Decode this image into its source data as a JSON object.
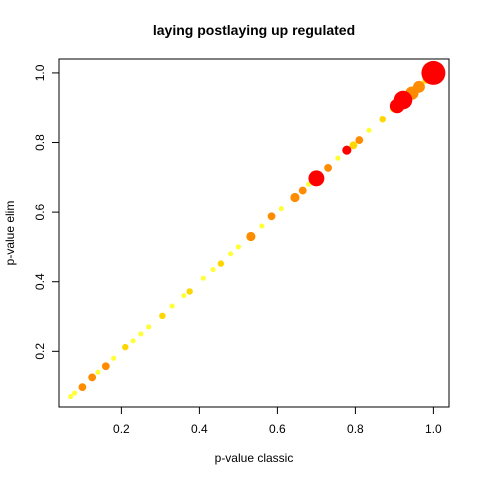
{
  "chart_data": {
    "type": "scatter",
    "title": "laying postlaying up regulated",
    "xlabel": "p-value classic",
    "ylabel": "p-value elim",
    "xlim": [
      0.04,
      1.04
    ],
    "ylim": [
      0.04,
      1.04
    ],
    "x_ticks": [
      0.2,
      0.4,
      0.6,
      0.8,
      1.0
    ],
    "x_tick_labels": [
      "0.2",
      "0.4",
      "0.6",
      "0.8",
      "1.0"
    ],
    "y_ticks": [
      0.2,
      0.4,
      0.6,
      0.8,
      1.0
    ],
    "y_tick_labels": [
      "0.2",
      "0.4",
      "0.6",
      "0.8",
      "1.0"
    ],
    "grid": false,
    "legend": "none",
    "colors": {
      "high": "#ff0000",
      "mid": "#ff8c00",
      "low": "#ffd700",
      "faint": "#ffff00"
    },
    "points": [
      {
        "x": 0.07,
        "y": 0.07,
        "size": 1,
        "color": "faint"
      },
      {
        "x": 0.08,
        "y": 0.08,
        "size": 1,
        "color": "faint"
      },
      {
        "x": 0.1,
        "y": 0.097,
        "size": 2,
        "color": "mid"
      },
      {
        "x": 0.125,
        "y": 0.125,
        "size": 2,
        "color": "mid"
      },
      {
        "x": 0.16,
        "y": 0.157,
        "size": 2,
        "color": "mid"
      },
      {
        "x": 0.14,
        "y": 0.14,
        "size": 1,
        "color": "faint"
      },
      {
        "x": 0.18,
        "y": 0.18,
        "size": 1,
        "color": "faint"
      },
      {
        "x": 0.21,
        "y": 0.212,
        "size": 1.5,
        "color": "low"
      },
      {
        "x": 0.23,
        "y": 0.23,
        "size": 1,
        "color": "faint"
      },
      {
        "x": 0.25,
        "y": 0.25,
        "size": 1,
        "color": "faint"
      },
      {
        "x": 0.27,
        "y": 0.27,
        "size": 1,
        "color": "faint"
      },
      {
        "x": 0.305,
        "y": 0.302,
        "size": 1.5,
        "color": "low"
      },
      {
        "x": 0.33,
        "y": 0.33,
        "size": 1,
        "color": "faint"
      },
      {
        "x": 0.36,
        "y": 0.36,
        "size": 1,
        "color": "faint"
      },
      {
        "x": 0.375,
        "y": 0.372,
        "size": 1.5,
        "color": "low"
      },
      {
        "x": 0.41,
        "y": 0.41,
        "size": 1,
        "color": "faint"
      },
      {
        "x": 0.435,
        "y": 0.435,
        "size": 1,
        "color": "faint"
      },
      {
        "x": 0.455,
        "y": 0.452,
        "size": 1.5,
        "color": "low"
      },
      {
        "x": 0.48,
        "y": 0.48,
        "size": 1,
        "color": "faint"
      },
      {
        "x": 0.5,
        "y": 0.5,
        "size": 1,
        "color": "faint"
      },
      {
        "x": 0.532,
        "y": 0.53,
        "size": 2.5,
        "color": "mid"
      },
      {
        "x": 0.56,
        "y": 0.56,
        "size": 1,
        "color": "faint"
      },
      {
        "x": 0.585,
        "y": 0.588,
        "size": 2,
        "color": "mid"
      },
      {
        "x": 0.61,
        "y": 0.61,
        "size": 1,
        "color": "faint"
      },
      {
        "x": 0.645,
        "y": 0.642,
        "size": 2.5,
        "color": "mid"
      },
      {
        "x": 0.665,
        "y": 0.662,
        "size": 2,
        "color": "mid"
      },
      {
        "x": 0.68,
        "y": 0.68,
        "size": 1,
        "color": "faint"
      },
      {
        "x": 0.7,
        "y": 0.697,
        "size": 5,
        "color": "high"
      },
      {
        "x": 0.73,
        "y": 0.727,
        "size": 2,
        "color": "mid"
      },
      {
        "x": 0.755,
        "y": 0.755,
        "size": 1,
        "color": "faint"
      },
      {
        "x": 0.778,
        "y": 0.778,
        "size": 2.5,
        "color": "high"
      },
      {
        "x": 0.795,
        "y": 0.792,
        "size": 2,
        "color": "low"
      },
      {
        "x": 0.81,
        "y": 0.807,
        "size": 2,
        "color": "mid"
      },
      {
        "x": 0.835,
        "y": 0.835,
        "size": 1,
        "color": "faint"
      },
      {
        "x": 0.87,
        "y": 0.867,
        "size": 1.5,
        "color": "low"
      },
      {
        "x": 0.895,
        "y": 0.895,
        "size": 1,
        "color": "faint"
      },
      {
        "x": 0.907,
        "y": 0.905,
        "size": 4.5,
        "color": "high"
      },
      {
        "x": 0.922,
        "y": 0.922,
        "size": 6,
        "color": "high"
      },
      {
        "x": 0.945,
        "y": 0.942,
        "size": 4,
        "color": "mid"
      },
      {
        "x": 0.963,
        "y": 0.96,
        "size": 3.5,
        "color": "mid"
      },
      {
        "x": 0.98,
        "y": 0.978,
        "size": 1.5,
        "color": "low"
      },
      {
        "x": 1.0,
        "y": 1.0,
        "size": 8,
        "color": "high"
      }
    ]
  }
}
